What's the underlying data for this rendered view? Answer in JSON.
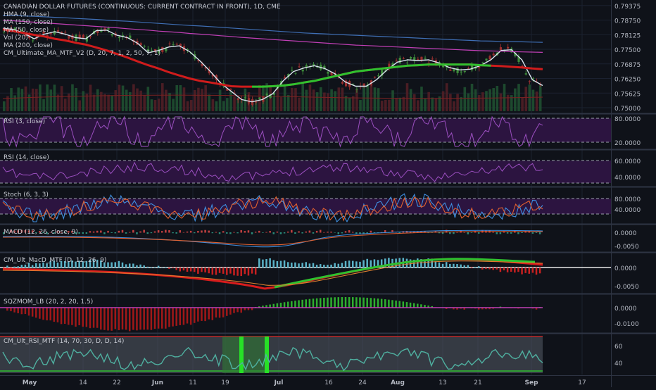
{
  "window_title": "CANADIAN DOLLAR FUTURES (CONTINUOUS: CURRENT CONTRACT IN FRONT), 1D, CME",
  "theme": {
    "background": "#0f1219",
    "grid": "#1b2130",
    "separator": "#2e3443",
    "axis_text": "#b4b8c2",
    "legend_text": "#c9ccd4",
    "candle_up": "#3d8a3a",
    "candle_down": "#9a2f2f",
    "rsi_band": "#2c1440"
  },
  "x_axis": {
    "tick_labels": [
      "May",
      "14",
      "22",
      "Jun",
      "11",
      "19",
      "Jul",
      "16",
      "24",
      "Aug",
      "13",
      "21",
      "Sep",
      "17"
    ]
  },
  "panes": [
    {
      "id": "price",
      "legend": [
        "CANADIAN DOLLAR FUTURES (CONTINUOUS: CURRENT CONTRACT IN FRONT), 1D, CME",
        "HMA (9, close)",
        "MA (150, close)",
        "MA (50, close)",
        "Vol (20)",
        "MA (200, close)",
        "CM_Ultimate_MA_MTF_V2 (D, 20, 7, 1, 2, 50, 7, 1)"
      ],
      "y_ticks": [
        "0.79375",
        "0.78750",
        "0.78125",
        "0.77500",
        "0.76875",
        "0.76250",
        "0.75625",
        "0.75000"
      ]
    },
    {
      "id": "rsi3",
      "legend": [
        "RSI (3, close)"
      ],
      "y_ticks": [
        "80.0000",
        "20.0000"
      ]
    },
    {
      "id": "rsi14",
      "legend": [
        "RSI (14, close)"
      ],
      "y_ticks": [
        "60.0000",
        "40.0000"
      ]
    },
    {
      "id": "stoch",
      "legend": [
        "Stoch (6, 3, 3)"
      ],
      "y_ticks": [
        "80.0000",
        "40.0000"
      ]
    },
    {
      "id": "macd",
      "legend": [
        "MACD (12, 26, close, 9)"
      ],
      "y_ticks": [
        "0.0000",
        "-0.0050"
      ]
    },
    {
      "id": "cmmacd",
      "legend": [
        "CM_Ult_MacD_MTF (D, 12, 26, 9)"
      ],
      "y_ticks": [
        "0.0000",
        "-0.0050"
      ]
    },
    {
      "id": "sqz",
      "legend": [
        "SQZMOM_LB (20, 2, 20, 1.5)"
      ],
      "y_ticks": [
        "0.0000",
        "-0.0100"
      ]
    },
    {
      "id": "cmrsi",
      "legend": [
        "CM_Ult_RSI_MTF (14, 70, 30, D, D, 14)"
      ],
      "y_ticks": [
        "60",
        "40"
      ]
    }
  ],
  "chart_data": {
    "type": "line",
    "title": "CANADIAN DOLLAR FUTURES (CONTINUOUS: CURRENT CONTRACT IN FRONT), 1D, CME",
    "x_ticks": [
      "May",
      "14",
      "22",
      "Jun",
      "11",
      "19",
      "Jul",
      "16",
      "24",
      "Aug",
      "13",
      "21",
      "Sep",
      "17"
    ],
    "y_ticks": [
      0.79375,
      0.7875,
      0.78125,
      0.775,
      0.76875,
      0.7625,
      0.75625,
      0.75
    ],
    "ylim": [
      0.7485,
      0.7955
    ],
    "series": [
      {
        "name": "HMA (9, close)",
        "color": "#d8e2ec",
        "values": [
          0.784,
          0.7835,
          0.782,
          0.7795,
          0.7815,
          0.7825,
          0.7815,
          0.78,
          0.7795,
          0.783,
          0.7832,
          0.781,
          0.78,
          0.7775,
          0.7735,
          0.7745,
          0.776,
          0.7765,
          0.774,
          0.77,
          0.7655,
          0.7605,
          0.757,
          0.7535,
          0.7525,
          0.7535,
          0.756,
          0.7615,
          0.7655,
          0.767,
          0.768,
          0.7668,
          0.7645,
          0.761,
          0.7592,
          0.7592,
          0.762,
          0.7662,
          0.7695,
          0.7705,
          0.7702,
          0.7705,
          0.7692,
          0.7672,
          0.7662,
          0.7665,
          0.768,
          0.7705,
          0.7745,
          0.7748,
          0.7705,
          0.762,
          0.7595
        ]
      },
      {
        "name": "MA (50, close)",
        "color": "#d01c1c",
        "values": [
          0.7835,
          0.7828,
          0.782,
          0.7812,
          0.7805,
          0.7795,
          0.7788,
          0.7778,
          0.777,
          0.7758,
          0.7745,
          0.773,
          0.7715,
          0.7698,
          0.7682,
          0.7668,
          0.7652,
          0.7638,
          0.7625,
          0.7615,
          0.7608,
          0.76,
          0.7592,
          0.759,
          0.759,
          0.759,
          0.7592,
          0.7595,
          0.76,
          0.7608,
          0.7615,
          0.7625,
          0.7635,
          0.7645,
          0.7655,
          0.766,
          0.7665,
          0.767,
          0.7675,
          0.768,
          0.7682,
          0.7685,
          0.7685,
          0.7685,
          0.7685,
          0.7685,
          0.7682,
          0.768,
          0.7678,
          0.7675,
          0.7672,
          0.7668,
          0.7665
        ]
      },
      {
        "name": "MA (150, close)",
        "color": "#3f6fb5",
        "values": [
          0.7895,
          0.7895,
          0.7893,
          0.7891,
          0.7889,
          0.7887,
          0.7885,
          0.7882,
          0.788,
          0.7878,
          0.7875,
          0.7872,
          0.787,
          0.7867,
          0.7864,
          0.7861,
          0.7858,
          0.7855,
          0.7852,
          0.785,
          0.7847,
          0.7844,
          0.7841,
          0.7838,
          0.7835,
          0.7832,
          0.7829,
          0.7826,
          0.7823,
          0.782,
          0.7818,
          0.7816,
          0.7814,
          0.7812,
          0.781,
          0.7808,
          0.7806,
          0.7804,
          0.7802,
          0.78,
          0.7798,
          0.7796,
          0.7794,
          0.7792,
          0.779,
          0.7788,
          0.7786,
          0.7785,
          0.7784,
          0.7783,
          0.7782,
          0.7781,
          0.778
        ]
      },
      {
        "name": "MA (200, close)",
        "color": "#c03fb5",
        "values": [
          0.7875,
          0.7872,
          0.7869,
          0.7866,
          0.7863,
          0.786,
          0.7857,
          0.7854,
          0.7851,
          0.7848,
          0.7845,
          0.7842,
          0.7838,
          0.7835,
          0.7832,
          0.7828,
          0.7825,
          0.7822,
          0.7818,
          0.7815,
          0.7812,
          0.7808,
          0.7805,
          0.7801,
          0.7798,
          0.7795,
          0.7792,
          0.7789,
          0.7786,
          0.7783,
          0.778,
          0.7777,
          0.7774,
          0.7771,
          0.7768,
          0.7766,
          0.7764,
          0.7762,
          0.776,
          0.7758,
          0.7756,
          0.7754,
          0.7752,
          0.775,
          0.7748,
          0.7746,
          0.7744,
          0.7743,
          0.7742,
          0.774,
          0.7739,
          0.7738,
          0.7737
        ]
      }
    ]
  }
}
